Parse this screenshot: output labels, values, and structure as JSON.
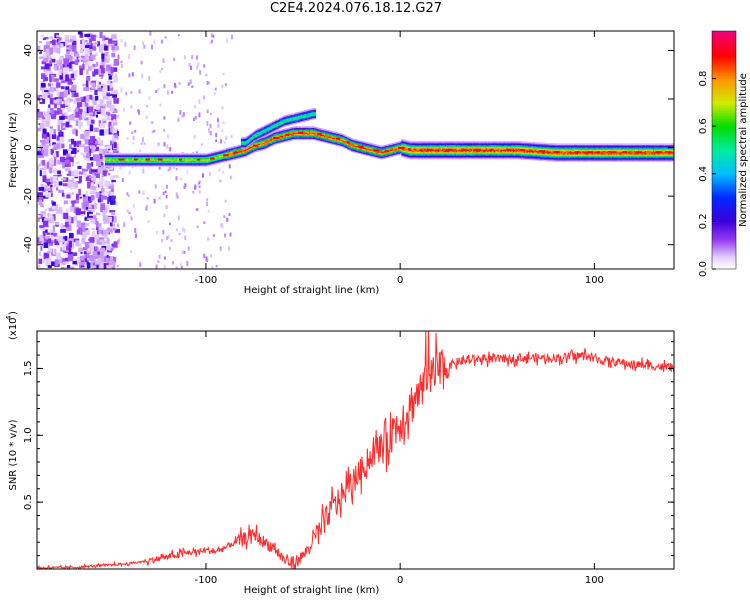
{
  "title": "C2E4.2024.076.18.12.G27",
  "chart_data": [
    {
      "type": "heatmap",
      "xlabel": "Height of straight line (km)",
      "ylabel": "Frequency (Hz)",
      "xlim": [
        -187,
        141
      ],
      "ylim": [
        -50,
        48
      ],
      "x_ticks": [
        -100,
        0,
        100
      ],
      "x_tick_labels": [
        "-100",
        "0",
        "100"
      ],
      "y_ticks": [
        -40,
        -20,
        0,
        20,
        40
      ],
      "y_tick_labels": [
        "-40",
        "-20",
        "0",
        "20",
        "40"
      ],
      "colorbar": {
        "label": "Normalized spectral amplitude",
        "range": [
          0,
          1
        ],
        "ticks": [
          0.0,
          0.2,
          0.4,
          0.6,
          0.8
        ],
        "tick_labels": [
          "0.0",
          "0.2",
          "0.4",
          "0.6",
          "0.8"
        ]
      },
      "ridge": {
        "x": [
          -150,
          -140,
          -130,
          -120,
          -110,
          -100,
          -95,
          -90,
          -85,
          -80,
          -75,
          -70,
          -65,
          -60,
          -55,
          -50,
          -45,
          -40,
          -35,
          -30,
          -25,
          -20,
          -15,
          -10,
          -5,
          0,
          5,
          10,
          20,
          40,
          60,
          80,
          100,
          120,
          141
        ],
        "y": [
          -5,
          -5,
          -5,
          -5,
          -5,
          -5,
          -4,
          -3,
          -2,
          -1,
          1,
          2,
          4,
          5,
          6,
          6,
          6,
          5,
          4,
          3,
          1,
          0,
          -1,
          -2,
          -1,
          0,
          -1,
          -1,
          -1,
          -1,
          -1,
          -2,
          -2,
          -2,
          -2
        ]
      },
      "upper_branch": {
        "x": [
          -80,
          -75,
          -70,
          -65,
          -60,
          -55,
          -50,
          -45
        ],
        "y": [
          2,
          5,
          7,
          9,
          11,
          12,
          13,
          14
        ]
      }
    },
    {
      "type": "line",
      "xlabel": "Height of straight line (km)",
      "ylabel": "SNR (10 * v/v)",
      "scale_label": "(x10",
      "scale_exponent": "4",
      "xlim": [
        -187,
        141
      ],
      "ylim": [
        0,
        1.78
      ],
      "x_ticks": [
        -100,
        0,
        100
      ],
      "x_tick_labels": [
        "-100",
        "0",
        "100"
      ],
      "y_ticks": [
        0.5,
        1.0,
        1.5
      ],
      "y_tick_labels": [
        "0.5",
        "1.0",
        "1.5"
      ],
      "color": "#ff2a2a",
      "series": [
        {
          "x": [
            -187,
            -170,
            -160,
            -150,
            -140,
            -130,
            -120,
            -110,
            -100,
            -95,
            -90,
            -85,
            -80,
            -75,
            -70,
            -65,
            -60,
            -55,
            -50,
            -45,
            -40,
            -35,
            -30,
            -25,
            -20,
            -15,
            -10,
            -5,
            0,
            5,
            10,
            15,
            20,
            25,
            30,
            40,
            50,
            60,
            70,
            80,
            90,
            95,
            100,
            110,
            120,
            130,
            141
          ],
          "y": [
            0.01,
            0.01,
            0.02,
            0.03,
            0.04,
            0.06,
            0.09,
            0.12,
            0.14,
            0.13,
            0.16,
            0.2,
            0.23,
            0.26,
            0.2,
            0.16,
            0.07,
            0.04,
            0.1,
            0.2,
            0.32,
            0.46,
            0.55,
            0.64,
            0.74,
            0.84,
            0.92,
            1.02,
            1.1,
            1.22,
            1.33,
            1.42,
            1.48,
            1.52,
            1.55,
            1.57,
            1.57,
            1.58,
            1.58,
            1.58,
            1.59,
            1.6,
            1.57,
            1.55,
            1.53,
            1.52,
            1.5
          ]
        }
      ]
    }
  ]
}
